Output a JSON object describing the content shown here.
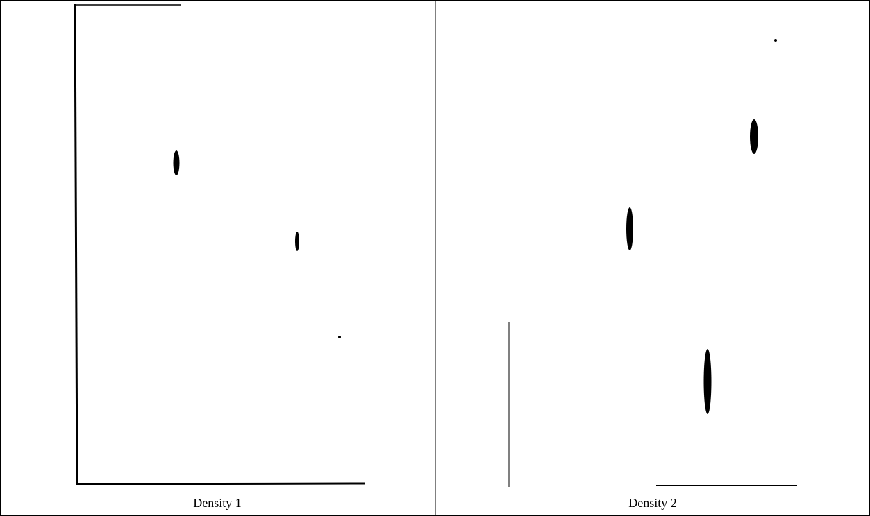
{
  "table": {
    "captions": [
      "Density 1",
      "Density 2"
    ]
  }
}
